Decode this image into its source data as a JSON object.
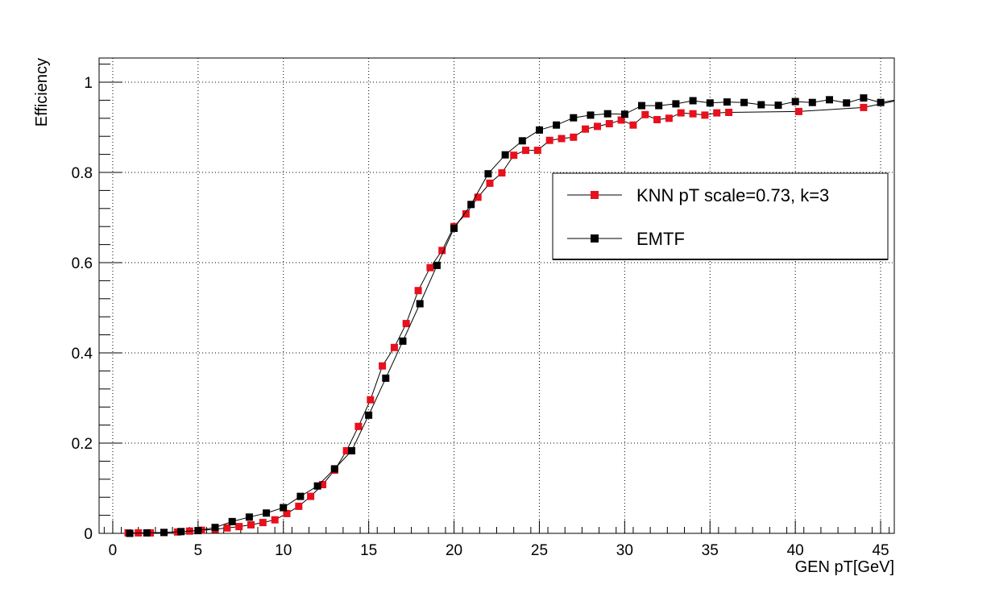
{
  "chart_data": {
    "type": "line",
    "title": "",
    "xlabel": "GEN pT[GeV]",
    "ylabel": "Efficiency",
    "xlim": [
      -0.8,
      45.8
    ],
    "ylim": [
      0,
      1.05
    ],
    "xticks": [
      0,
      5,
      10,
      15,
      20,
      25,
      30,
      35,
      40,
      45
    ],
    "xtick_labels": [
      "0",
      "5",
      "10",
      "15",
      "20",
      "25",
      "30",
      "35",
      "40",
      "45"
    ],
    "yticks": [
      0,
      0.2,
      0.4,
      0.6,
      0.8,
      1
    ],
    "ytick_labels": [
      "0",
      "0.2",
      "0.4",
      "0.6",
      "0.8",
      "1"
    ],
    "grid": true,
    "legend_position": "upper-right",
    "series": [
      {
        "name": "KNN pT scale=0.73, k=3",
        "color": "#e8101c",
        "marker": "square",
        "x": [
          0.9,
          1.5,
          2.2,
          3.0,
          3.8,
          4.5,
          5.2,
          6.0,
          6.7,
          7.4,
          8.1,
          8.8,
          9.5,
          10.2,
          10.9,
          11.6,
          12.3,
          13.0,
          13.7,
          14.4,
          15.1,
          15.8,
          16.5,
          17.2,
          17.9,
          18.6,
          19.3,
          20.0,
          20.7,
          21.4,
          22.1,
          22.8,
          23.5,
          24.2,
          24.9,
          25.6,
          26.3,
          27.0,
          27.7,
          28.4,
          29.1,
          29.8,
          30.5,
          31.2,
          31.9,
          32.6,
          33.3,
          34.0,
          34.7,
          35.4,
          36.1,
          40.2,
          44.0
        ],
        "y": [
          0.001,
          0.001,
          0.001,
          0.002,
          0.003,
          0.005,
          0.007,
          0.009,
          0.012,
          0.015,
          0.019,
          0.024,
          0.03,
          0.044,
          0.06,
          0.082,
          0.108,
          0.14,
          0.183,
          0.237,
          0.296,
          0.371,
          0.412,
          0.465,
          0.538,
          0.589,
          0.627,
          0.68,
          0.708,
          0.745,
          0.776,
          0.799,
          0.838,
          0.849,
          0.849,
          0.871,
          0.875,
          0.878,
          0.896,
          0.902,
          0.908,
          0.916,
          0.905,
          0.928,
          0.917,
          0.92,
          0.932,
          0.93,
          0.927,
          0.932,
          0.933,
          0.935,
          0.944
        ]
      },
      {
        "name": "EMTF",
        "color": "#000000",
        "marker": "square",
        "x": [
          1.0,
          2.0,
          3.0,
          4.0,
          5.0,
          6.0,
          7.0,
          8.0,
          9.0,
          10.0,
          11.0,
          12.0,
          13.0,
          14.0,
          15.0,
          16.0,
          17.0,
          18.0,
          19.0,
          20.0,
          21.0,
          22.0,
          23.0,
          24.0,
          25.0,
          26.0,
          27.0,
          28.0,
          29.0,
          30.0,
          31.0,
          32.0,
          33.0,
          34.0,
          35.0,
          36.0,
          37.0,
          38.0,
          39.0,
          40.0,
          41.0,
          42.0,
          43.0,
          44.0,
          45.0
        ],
        "y": [
          0.0,
          0.001,
          0.002,
          0.004,
          0.006,
          0.013,
          0.026,
          0.036,
          0.045,
          0.057,
          0.082,
          0.105,
          0.143,
          0.183,
          0.262,
          0.344,
          0.426,
          0.509,
          0.594,
          0.676,
          0.729,
          0.797,
          0.839,
          0.87,
          0.894,
          0.905,
          0.921,
          0.927,
          0.93,
          0.929,
          0.948,
          0.948,
          0.952,
          0.959,
          0.954,
          0.956,
          0.955,
          0.95,
          0.949,
          0.957,
          0.955,
          0.961,
          0.954,
          0.965,
          0.955
        ]
      }
    ]
  }
}
